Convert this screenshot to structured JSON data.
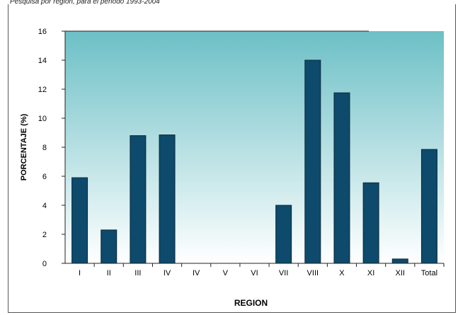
{
  "caption": "Pesquisa por region, para el periodo 1993-2004",
  "chart_data": {
    "type": "bar",
    "categories": [
      "I",
      "II",
      "III",
      "IV",
      "IV",
      "V",
      "VI",
      "VII",
      "VIII",
      "X",
      "XI",
      "XII",
      "Total"
    ],
    "values": [
      5.9,
      2.3,
      8.8,
      8.85,
      0,
      0,
      0,
      4.0,
      14.0,
      11.75,
      5.55,
      0.3,
      7.85
    ],
    "xlabel": "REGION",
    "ylabel": "PORCENTAJE (%)",
    "ylim": [
      0,
      16
    ],
    "yticks": [
      0,
      2,
      4,
      6,
      8,
      10,
      12,
      14,
      16
    ],
    "grid": false,
    "colors": {
      "bar": "#0d4a6b",
      "bar_stroke": "#0a2a3c",
      "bg_top": "#6cc0c6",
      "bg_bottom": "#ffffff"
    }
  }
}
